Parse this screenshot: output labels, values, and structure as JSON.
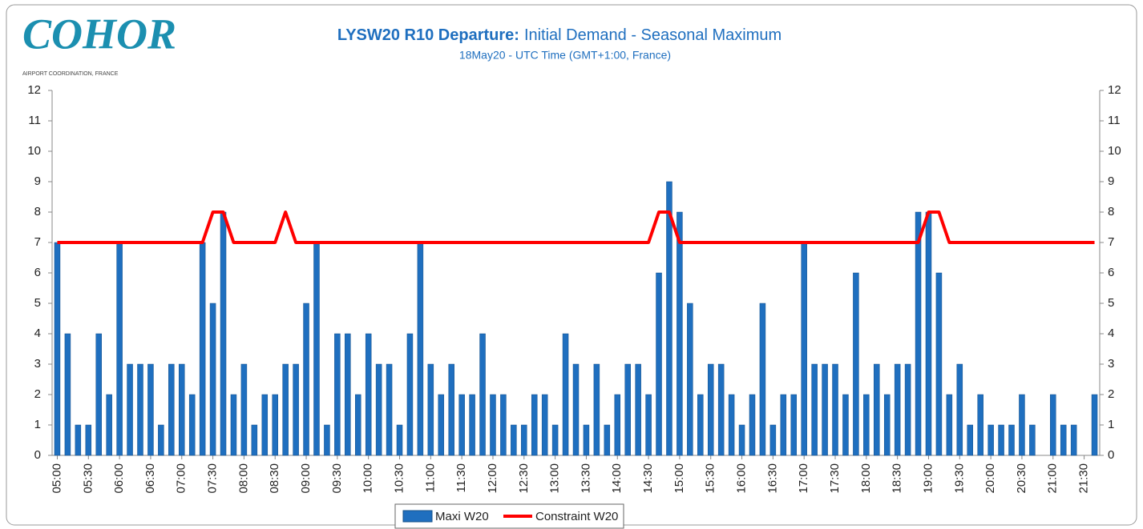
{
  "logo": {
    "name": "COHOR",
    "tagline": "AIRPORT COORDINATION, FRANCE"
  },
  "chart_data": {
    "type": "bar",
    "title": {
      "bold": "LYSW20 R10 Departure:",
      "rest": "Initial Demand - Seasonal Maximum"
    },
    "subtitle": "18May20 - UTC Time (GMT+1:00, France)",
    "categories": [
      "05:00",
      null,
      null,
      "05:30",
      null,
      null,
      "06:00",
      null,
      null,
      "06:30",
      null,
      null,
      "07:00",
      null,
      null,
      "07:30",
      null,
      null,
      "08:00",
      null,
      null,
      "08:30",
      null,
      null,
      "09:00",
      null,
      null,
      "09:30",
      null,
      null,
      "10:00",
      null,
      null,
      "10:30",
      null,
      null,
      "11:00",
      null,
      null,
      "11:30",
      null,
      null,
      "12:00",
      null,
      null,
      "12:30",
      null,
      null,
      "13:00",
      null,
      null,
      "13:30",
      null,
      null,
      "14:00",
      null,
      null,
      "14:30",
      null,
      null,
      "15:00",
      null,
      null,
      "15:30",
      null,
      null,
      "16:00",
      null,
      null,
      "16:30",
      null,
      null,
      "17:00",
      null,
      null,
      "17:30",
      null,
      null,
      "18:00",
      null,
      null,
      "18:30",
      null,
      null,
      "19:00",
      null,
      null,
      "19:30",
      null,
      null,
      "20:00",
      null,
      null,
      "20:30",
      null,
      null,
      "21:00",
      null,
      null,
      "21:30",
      null
    ],
    "series": [
      {
        "name": "Maxi W20",
        "type": "bar",
        "color": "#1f6fbf",
        "values": [
          7,
          4,
          1,
          1,
          4,
          2,
          7,
          3,
          3,
          3,
          1,
          3,
          3,
          2,
          7,
          5,
          8,
          2,
          3,
          1,
          2,
          2,
          3,
          3,
          5,
          7,
          1,
          4,
          4,
          2,
          4,
          3,
          3,
          1,
          4,
          7,
          3,
          2,
          3,
          2,
          2,
          4,
          2,
          2,
          1,
          1,
          2,
          2,
          1,
          4,
          3,
          1,
          3,
          1,
          2,
          3,
          3,
          2,
          6,
          9,
          8,
          5,
          2,
          3,
          3,
          2,
          1,
          2,
          5,
          1,
          2,
          2,
          7,
          3,
          3,
          3,
          2,
          6,
          2,
          3,
          2,
          3,
          3,
          8,
          8,
          6,
          2,
          3,
          1,
          2,
          1,
          1,
          1,
          2,
          1,
          0,
          2,
          1,
          1,
          0,
          2
        ]
      },
      {
        "name": "Constraint W20",
        "type": "line",
        "color": "#ff0000",
        "axis": "y2",
        "values": [
          7,
          7,
          7,
          7,
          7,
          7,
          7,
          7,
          7,
          7,
          7,
          7,
          7,
          7,
          7,
          8,
          8,
          7,
          7,
          7,
          7,
          7,
          8,
          7,
          7,
          7,
          7,
          7,
          7,
          7,
          7,
          7,
          7,
          7,
          7,
          7,
          7,
          7,
          7,
          7,
          7,
          7,
          7,
          7,
          7,
          7,
          7,
          7,
          7,
          7,
          7,
          7,
          7,
          7,
          7,
          7,
          7,
          7,
          8,
          8,
          7,
          7,
          7,
          7,
          7,
          7,
          7,
          7,
          7,
          7,
          7,
          7,
          7,
          7,
          7,
          7,
          7,
          7,
          7,
          7,
          7,
          7,
          7,
          7,
          8,
          8,
          7,
          7,
          7,
          7,
          7,
          7,
          7,
          7,
          7,
          7,
          7,
          7,
          7,
          7,
          7
        ]
      }
    ],
    "ylim": [
      0,
      12
    ],
    "yticks": [
      0,
      1,
      2,
      3,
      4,
      5,
      6,
      7,
      8,
      9,
      10,
      11,
      12
    ],
    "y2lim": [
      0,
      12
    ],
    "y2ticks": [
      0,
      1,
      2,
      3,
      4,
      5,
      6,
      7,
      8,
      9,
      10,
      11,
      12
    ],
    "legend": "bottom"
  }
}
